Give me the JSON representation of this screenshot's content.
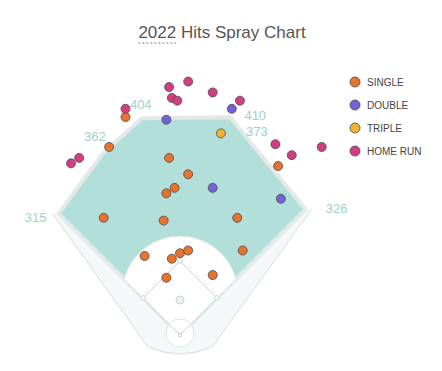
{
  "chart_data": {
    "type": "scatter",
    "title": "2022 Hits Spray Chart",
    "xlim": [
      -300,
      300
    ],
    "ylim": [
      -20,
      480
    ],
    "tick_labels": false,
    "grid": false,
    "legend": "top-right",
    "marker": "circle",
    "fence": {
      "values": [
        315,
        362,
        404,
        410,
        373,
        326
      ]
    },
    "series": [
      {
        "name": "SINGLE",
        "color": "#e8732c",
        "x": [
          -100,
          -130,
          -20,
          15,
          -10,
          -25,
          -30,
          -140,
          105,
          180,
          115,
          -65,
          -15,
          0,
          15,
          60,
          -25
        ],
        "values": [
          400,
          345,
          325,
          295,
          270,
          260,
          210,
          215,
          215,
          310,
          155,
          145,
          140,
          150,
          155,
          110,
          105
        ]
      },
      {
        "name": "DOUBLE",
        "color": "#7463d6",
        "x": [
          -25,
          95,
          60,
          185
        ],
        "values": [
          395,
          415,
          270,
          250
        ]
      },
      {
        "name": "TRIPLE",
        "color": "#f2b134",
        "x": [
          75
        ],
        "values": [
          370
        ]
      },
      {
        "name": "HOME RUN",
        "color": "#d43d84",
        "x": [
          -20,
          15,
          -15,
          -5,
          -100,
          60,
          110,
          -185,
          -200,
          175,
          205,
          260
        ],
        "values": [
          455,
          465,
          435,
          430,
          415,
          445,
          430,
          325,
          315,
          350,
          330,
          345
        ]
      }
    ]
  }
}
